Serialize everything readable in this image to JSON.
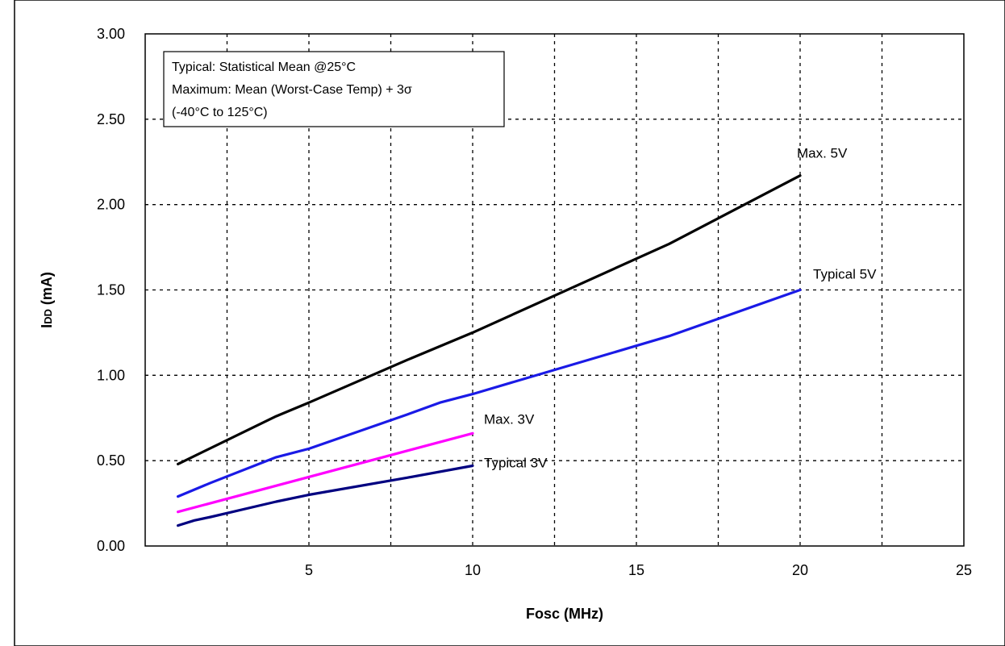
{
  "chart_data": {
    "type": "line",
    "xlabel": "Fosc (MHz)",
    "ylabel_main": "I",
    "ylabel_sub": "DD",
    "ylabel_unit": " (mA)",
    "xlim": [
      0,
      25
    ],
    "ylim": [
      0,
      3
    ],
    "x_ticks": [
      "5",
      "10",
      "15",
      "20",
      "25"
    ],
    "y_ticks": [
      "0.00",
      "0.50",
      "1.00",
      "1.50",
      "2.00",
      "2.50",
      "3.00"
    ],
    "grid": true,
    "legend_box": {
      "placement": "top-left",
      "lines": [
        "Typical: Statistical Mean @25°C",
        "Maximum: Mean (Worst-Case Temp) + 3σ",
        "(-40°C to 125°C)"
      ]
    },
    "series": [
      {
        "name": "Max. 5V",
        "color": "#000000",
        "x": [
          1,
          4,
          5,
          8,
          10,
          16,
          20
        ],
        "y": [
          0.48,
          0.76,
          0.84,
          1.09,
          1.25,
          1.77,
          2.17
        ]
      },
      {
        "name": "Typical 5V",
        "color": "#1a1ae6",
        "x": [
          1,
          2,
          4,
          5,
          8,
          9,
          10,
          16,
          20
        ],
        "y": [
          0.29,
          0.37,
          0.52,
          0.57,
          0.77,
          0.84,
          0.89,
          1.23,
          1.5
        ]
      },
      {
        "name": "Max. 3V",
        "color": "#ff00ff",
        "x": [
          1,
          10
        ],
        "y": [
          0.2,
          0.66
        ]
      },
      {
        "name": "Typical 3V",
        "color": "#000080",
        "x": [
          1,
          1.5,
          2,
          4,
          5,
          8,
          10
        ],
        "y": [
          0.12,
          0.15,
          0.17,
          0.26,
          0.3,
          0.4,
          0.47
        ]
      }
    ]
  }
}
